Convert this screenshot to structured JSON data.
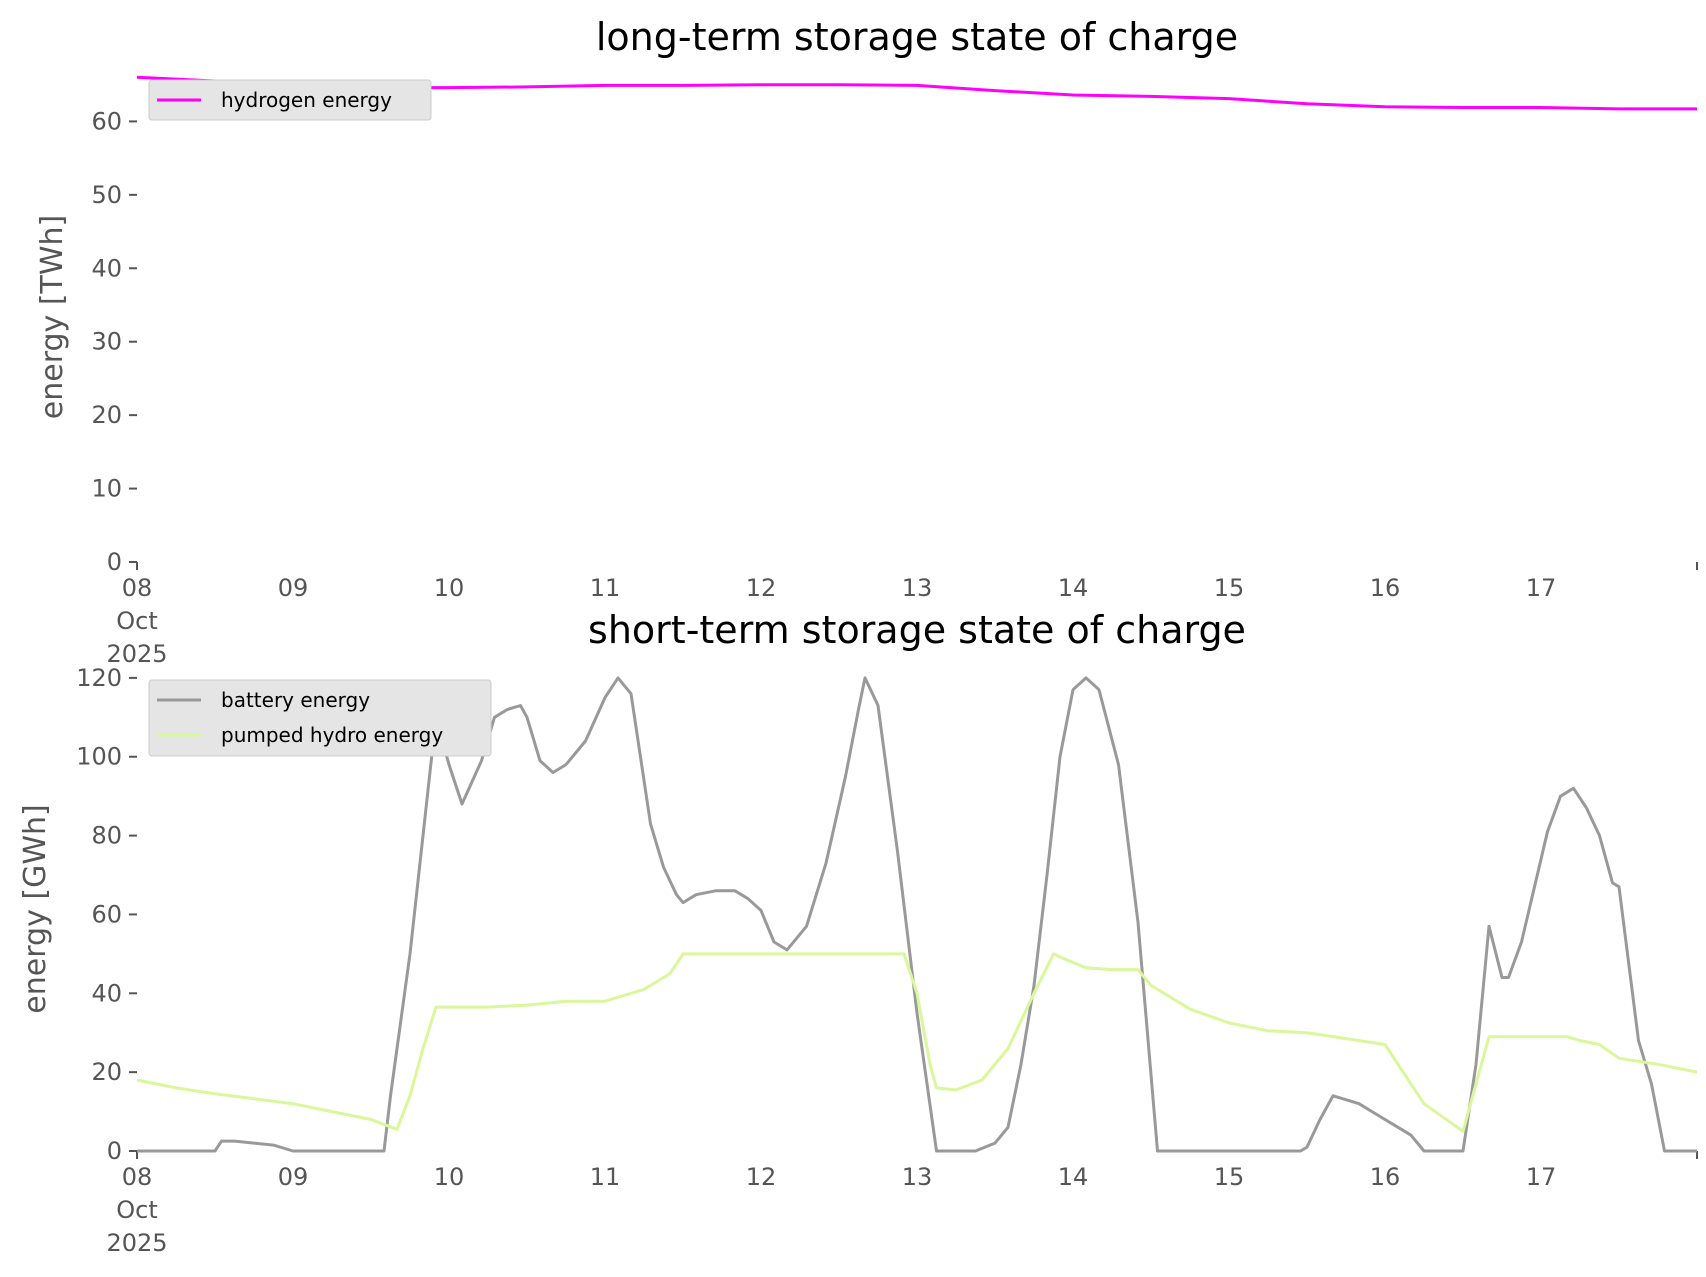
{
  "chart_data": [
    {
      "type": "line",
      "title": "long-term storage state of charge",
      "ylabel": "energy [TWh]",
      "xlabel": "",
      "ylim": [
        0,
        67
      ],
      "xlim": [
        "2025-10-08T00:00",
        "2025-10-18T00:00"
      ],
      "yticks": [
        0,
        10,
        20,
        30,
        40,
        50,
        60
      ],
      "xtick_labels": [
        {
          "x": "2025-10-08T00:00",
          "lines": [
            "08",
            "Oct",
            "2025"
          ]
        },
        {
          "x": "2025-10-09T00:00",
          "lines": [
            "09"
          ]
        },
        {
          "x": "2025-10-10T00:00",
          "lines": [
            "10"
          ]
        },
        {
          "x": "2025-10-11T00:00",
          "lines": [
            "11"
          ]
        },
        {
          "x": "2025-10-12T00:00",
          "lines": [
            "12"
          ]
        },
        {
          "x": "2025-10-13T00:00",
          "lines": [
            "13"
          ]
        },
        {
          "x": "2025-10-14T00:00",
          "lines": [
            "14"
          ]
        },
        {
          "x": "2025-10-15T00:00",
          "lines": [
            "15"
          ]
        },
        {
          "x": "2025-10-16T00:00",
          "lines": [
            "16"
          ]
        },
        {
          "x": "2025-10-17T00:00",
          "lines": [
            "17"
          ]
        }
      ],
      "legend_position": "top-left",
      "grid": false,
      "series": [
        {
          "name": "hydrogen energy",
          "color": "#ff00ff",
          "points": [
            [
              "2025-10-08T00:00",
              66.0
            ],
            [
              "2025-10-08T12:00",
              65.5
            ],
            [
              "2025-10-09T00:00",
              65.0
            ],
            [
              "2025-10-09T12:00",
              64.6
            ],
            [
              "2025-10-10T00:00",
              64.6
            ],
            [
              "2025-10-10T12:00",
              64.7
            ],
            [
              "2025-10-11T00:00",
              64.9
            ],
            [
              "2025-10-11T12:00",
              64.9
            ],
            [
              "2025-10-12T00:00",
              65.0
            ],
            [
              "2025-10-12T12:00",
              65.0
            ],
            [
              "2025-10-13T00:00",
              64.9
            ],
            [
              "2025-10-13T12:00",
              64.2
            ],
            [
              "2025-10-14T00:00",
              63.6
            ],
            [
              "2025-10-14T12:00",
              63.4
            ],
            [
              "2025-10-15T00:00",
              63.1
            ],
            [
              "2025-10-15T12:00",
              62.4
            ],
            [
              "2025-10-16T00:00",
              62.0
            ],
            [
              "2025-10-16T12:00",
              61.9
            ],
            [
              "2025-10-17T00:00",
              61.9
            ],
            [
              "2025-10-17T12:00",
              61.7
            ],
            [
              "2025-10-18T00:00",
              61.7
            ]
          ]
        }
      ]
    },
    {
      "type": "line",
      "title": "short-term storage state of charge",
      "ylabel": "energy [GWh]",
      "xlabel": "",
      "ylim": [
        0,
        122
      ],
      "xlim": [
        "2025-10-08T00:00",
        "2025-10-18T00:00"
      ],
      "yticks": [
        0,
        20,
        40,
        60,
        80,
        100,
        120
      ],
      "xtick_labels": [
        {
          "x": "2025-10-08T00:00",
          "lines": [
            "08",
            "Oct",
            "2025"
          ]
        },
        {
          "x": "2025-10-09T00:00",
          "lines": [
            "09"
          ]
        },
        {
          "x": "2025-10-10T00:00",
          "lines": [
            "10"
          ]
        },
        {
          "x": "2025-10-11T00:00",
          "lines": [
            "11"
          ]
        },
        {
          "x": "2025-10-12T00:00",
          "lines": [
            "12"
          ]
        },
        {
          "x": "2025-10-13T00:00",
          "lines": [
            "13"
          ]
        },
        {
          "x": "2025-10-14T00:00",
          "lines": [
            "14"
          ]
        },
        {
          "x": "2025-10-15T00:00",
          "lines": [
            "15"
          ]
        },
        {
          "x": "2025-10-16T00:00",
          "lines": [
            "16"
          ]
        },
        {
          "x": "2025-10-17T00:00",
          "lines": [
            "17"
          ]
        }
      ],
      "legend_position": "top-left",
      "grid": false,
      "series": [
        {
          "name": "battery energy",
          "color": "#999999",
          "points": [
            [
              "2025-10-08T00:00",
              0
            ],
            [
              "2025-10-08T12:00",
              0
            ],
            [
              "2025-10-08T13:00",
              2.5
            ],
            [
              "2025-10-08T15:00",
              2.5
            ],
            [
              "2025-10-08T21:00",
              1.5
            ],
            [
              "2025-10-09T00:00",
              0
            ],
            [
              "2025-10-09T12:00",
              0
            ],
            [
              "2025-10-09T14:00",
              0
            ],
            [
              "2025-10-09T15:00",
              14
            ],
            [
              "2025-10-09T18:00",
              50
            ],
            [
              "2025-10-09T20:00",
              80
            ],
            [
              "2025-10-09T22:00",
              110
            ],
            [
              "2025-10-10T00:00",
              98
            ],
            [
              "2025-10-10T02:00",
              88
            ],
            [
              "2025-10-10T05:00",
              99
            ],
            [
              "2025-10-10T07:00",
              110
            ],
            [
              "2025-10-10T09:00",
              112
            ],
            [
              "2025-10-10T11:00",
              113
            ],
            [
              "2025-10-10T12:00",
              110
            ],
            [
              "2025-10-10T14:00",
              99
            ],
            [
              "2025-10-10T16:00",
              96
            ],
            [
              "2025-10-10T18:00",
              98
            ],
            [
              "2025-10-10T21:00",
              104
            ],
            [
              "2025-10-11T00:00",
              115
            ],
            [
              "2025-10-11T02:00",
              120
            ],
            [
              "2025-10-11T04:00",
              116
            ],
            [
              "2025-10-11T07:00",
              83
            ],
            [
              "2025-10-11T09:00",
              72
            ],
            [
              "2025-10-11T11:00",
              65
            ],
            [
              "2025-10-11T12:00",
              63
            ],
            [
              "2025-10-11T14:00",
              65
            ],
            [
              "2025-10-11T17:00",
              66
            ],
            [
              "2025-10-11T20:00",
              66
            ],
            [
              "2025-10-11T22:00",
              64
            ],
            [
              "2025-10-12T00:00",
              61
            ],
            [
              "2025-10-12T02:00",
              53
            ],
            [
              "2025-10-12T04:00",
              51
            ],
            [
              "2025-10-12T07:00",
              57
            ],
            [
              "2025-10-12T10:00",
              73
            ],
            [
              "2025-10-12T13:00",
              95
            ],
            [
              "2025-10-12T15:00",
              112
            ],
            [
              "2025-10-12T16:00",
              120
            ],
            [
              "2025-10-12T18:00",
              113
            ],
            [
              "2025-10-12T21:00",
              76
            ],
            [
              "2025-10-13T00:00",
              35
            ],
            [
              "2025-10-13T03:00",
              0
            ],
            [
              "2025-10-13T06:00",
              0
            ],
            [
              "2025-10-13T09:00",
              0
            ],
            [
              "2025-10-13T12:00",
              2
            ],
            [
              "2025-10-13T14:00",
              6
            ],
            [
              "2025-10-13T16:00",
              22
            ],
            [
              "2025-10-13T18:00",
              42
            ],
            [
              "2025-10-13T20:00",
              70
            ],
            [
              "2025-10-13T22:00",
              100
            ],
            [
              "2025-10-14T00:00",
              117
            ],
            [
              "2025-10-14T02:00",
              120
            ],
            [
              "2025-10-14T04:00",
              117
            ],
            [
              "2025-10-14T07:00",
              98
            ],
            [
              "2025-10-14T10:00",
              58
            ],
            [
              "2025-10-14T13:00",
              0
            ],
            [
              "2025-10-14T18:00",
              0
            ],
            [
              "2025-10-15T00:00",
              0
            ],
            [
              "2025-10-15T06:00",
              0
            ],
            [
              "2025-10-15T11:00",
              0
            ],
            [
              "2025-10-15T12:00",
              1
            ],
            [
              "2025-10-15T14:00",
              8
            ],
            [
              "2025-10-15T16:00",
              14
            ],
            [
              "2025-10-15T18:00",
              13
            ],
            [
              "2025-10-15T20:00",
              12
            ],
            [
              "2025-10-15T22:00",
              10
            ],
            [
              "2025-10-16T00:00",
              8
            ],
            [
              "2025-10-16T02:00",
              6
            ],
            [
              "2025-10-16T04:00",
              4
            ],
            [
              "2025-10-16T06:00",
              0
            ],
            [
              "2025-10-16T10:00",
              0
            ],
            [
              "2025-10-16T12:00",
              0
            ],
            [
              "2025-10-16T14:00",
              22
            ],
            [
              "2025-10-16T16:00",
              57
            ],
            [
              "2025-10-16T18:00",
              44
            ],
            [
              "2025-10-16T19:00",
              44
            ],
            [
              "2025-10-16T21:00",
              53
            ],
            [
              "2025-10-16T23:00",
              67
            ],
            [
              "2025-10-17T01:00",
              81
            ],
            [
              "2025-10-17T03:00",
              90
            ],
            [
              "2025-10-17T05:00",
              92
            ],
            [
              "2025-10-17T07:00",
              87
            ],
            [
              "2025-10-17T09:00",
              80
            ],
            [
              "2025-10-17T11:00",
              68
            ],
            [
              "2025-10-17T12:00",
              67
            ],
            [
              "2025-10-17T15:00",
              28
            ],
            [
              "2025-10-17T17:00",
              17
            ],
            [
              "2025-10-17T19:00",
              0
            ],
            [
              "2025-10-18T00:00",
              0
            ]
          ]
        },
        {
          "name": "pumped hydro energy",
          "color": "#d9f79b",
          "points": [
            [
              "2025-10-08T00:00",
              18
            ],
            [
              "2025-10-08T06:00",
              16
            ],
            [
              "2025-10-08T12:00",
              14.5
            ],
            [
              "2025-10-09T00:00",
              12
            ],
            [
              "2025-10-09T06:00",
              10
            ],
            [
              "2025-10-09T12:00",
              8
            ],
            [
              "2025-10-09T16:00",
              5.5
            ],
            [
              "2025-10-09T18:00",
              14
            ],
            [
              "2025-10-09T20:00",
              26
            ],
            [
              "2025-10-09T22:00",
              36.5
            ],
            [
              "2025-10-10T00:00",
              36.5
            ],
            [
              "2025-10-10T06:00",
              36.5
            ],
            [
              "2025-10-10T12:00",
              37
            ],
            [
              "2025-10-10T18:00",
              38
            ],
            [
              "2025-10-11T00:00",
              38
            ],
            [
              "2025-10-11T06:00",
              41
            ],
            [
              "2025-10-11T10:00",
              45
            ],
            [
              "2025-10-11T12:00",
              50
            ],
            [
              "2025-10-11T18:00",
              50
            ],
            [
              "2025-10-12T00:00",
              50
            ],
            [
              "2025-10-12T06:00",
              50
            ],
            [
              "2025-10-12T12:00",
              50
            ],
            [
              "2025-10-12T18:00",
              50
            ],
            [
              "2025-10-12T22:00",
              50
            ],
            [
              "2025-10-13T00:00",
              40
            ],
            [
              "2025-10-13T02:00",
              22
            ],
            [
              "2025-10-13T03:00",
              16
            ],
            [
              "2025-10-13T06:00",
              15.5
            ],
            [
              "2025-10-13T10:00",
              18
            ],
            [
              "2025-10-13T14:00",
              26
            ],
            [
              "2025-10-13T18:00",
              40
            ],
            [
              "2025-10-13T21:00",
              50
            ],
            [
              "2025-10-13T23:00",
              48.5
            ],
            [
              "2025-10-14T02:00",
              46.5
            ],
            [
              "2025-10-14T06:00",
              46
            ],
            [
              "2025-10-14T10:00",
              46
            ],
            [
              "2025-10-14T12:00",
              42
            ],
            [
              "2025-10-14T18:00",
              36
            ],
            [
              "2025-10-15T00:00",
              32.5
            ],
            [
              "2025-10-15T06:00",
              30.5
            ],
            [
              "2025-10-15T12:00",
              30
            ],
            [
              "2025-10-15T18:00",
              28.5
            ],
            [
              "2025-10-16T00:00",
              27
            ],
            [
              "2025-10-16T03:00",
              19.5
            ],
            [
              "2025-10-16T06:00",
              12
            ],
            [
              "2025-10-16T12:00",
              5
            ],
            [
              "2025-10-16T16:00",
              29
            ],
            [
              "2025-10-16T22:00",
              29
            ],
            [
              "2025-10-17T04:00",
              29
            ],
            [
              "2025-10-17T06:00",
              28
            ],
            [
              "2025-10-17T09:00",
              27
            ],
            [
              "2025-10-17T12:00",
              23.5
            ],
            [
              "2025-10-17T18:00",
              22
            ],
            [
              "2025-10-18T00:00",
              20
            ]
          ]
        }
      ]
    }
  ]
}
